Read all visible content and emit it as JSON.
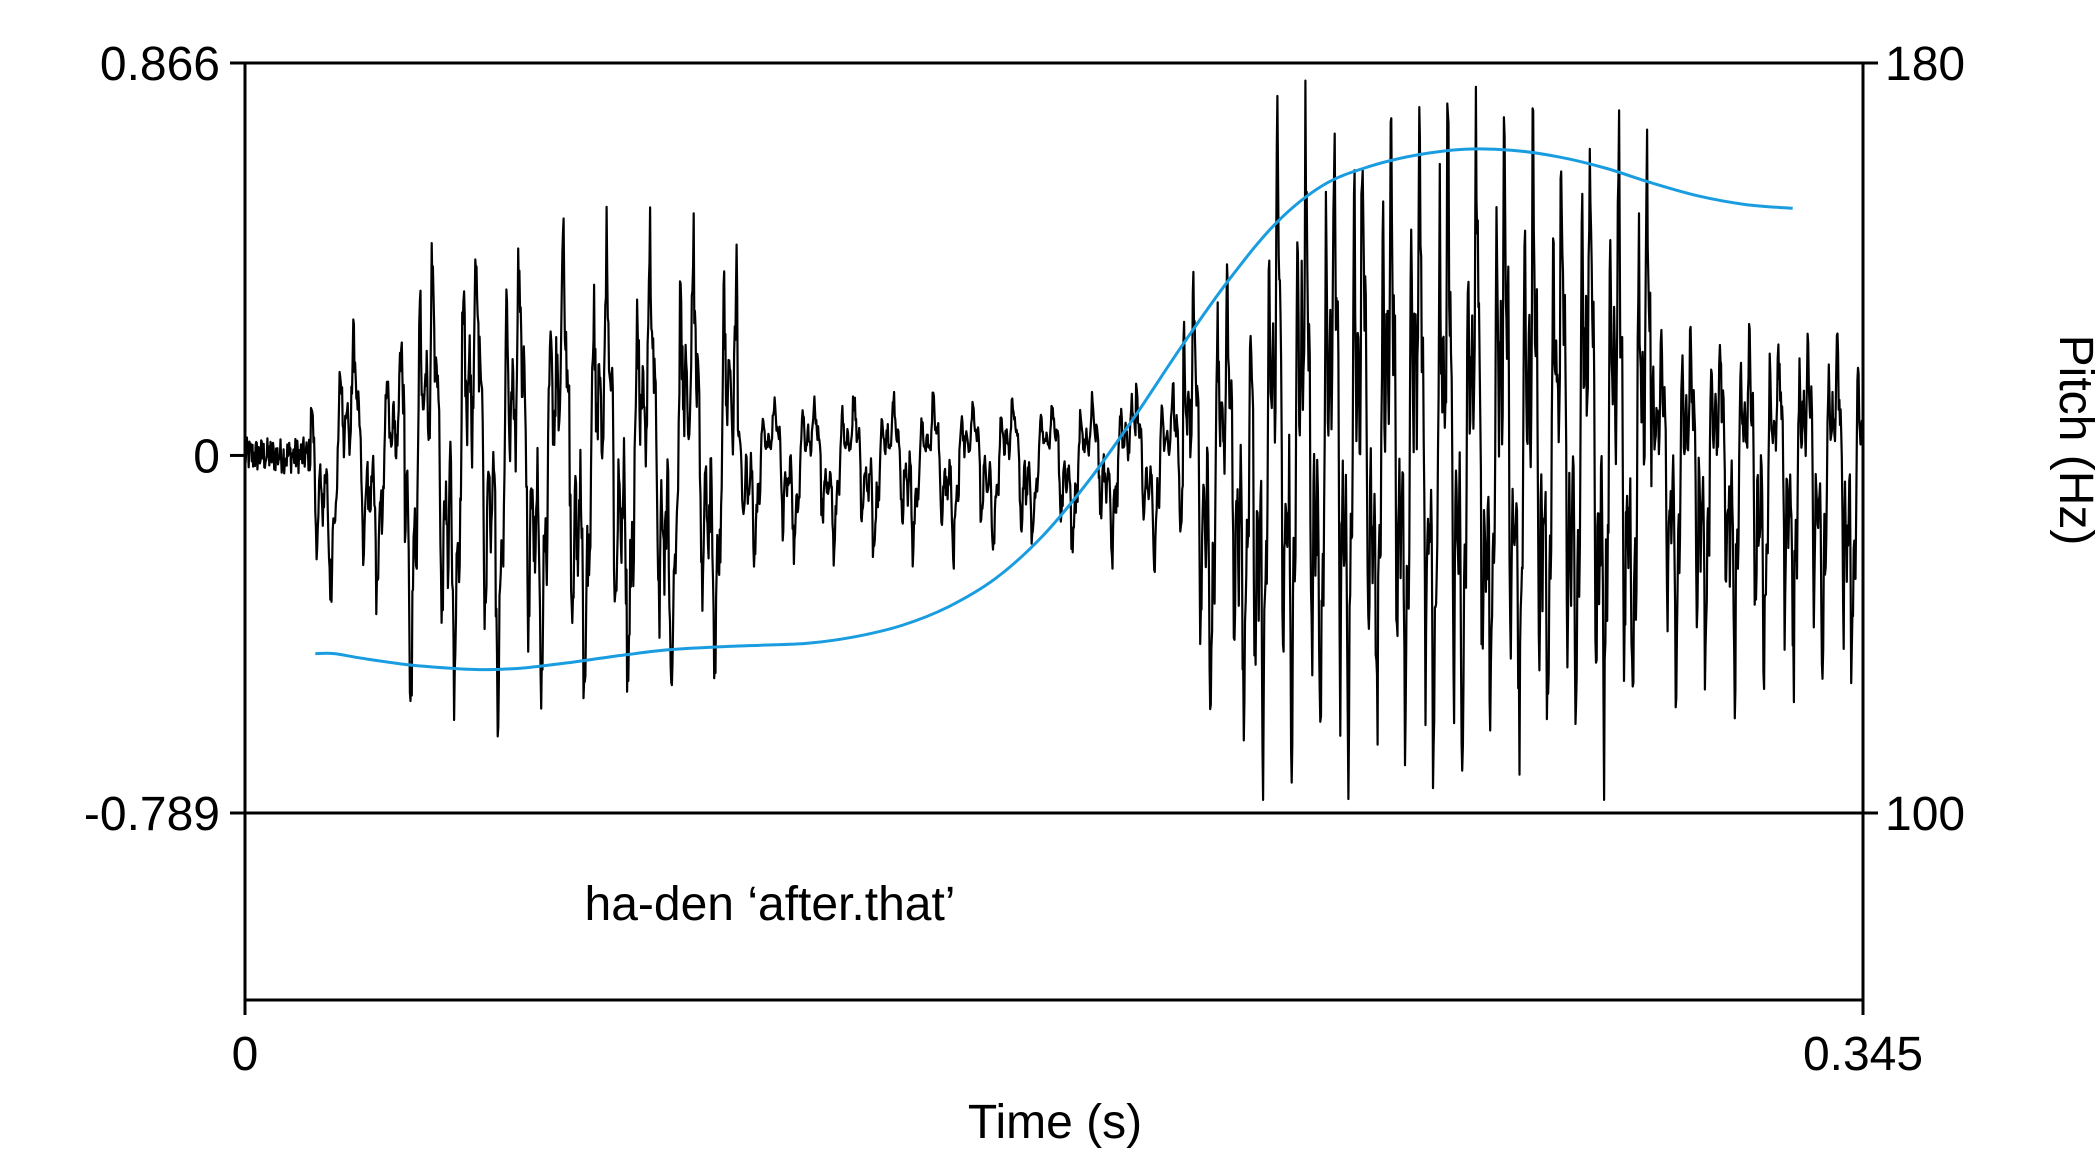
{
  "chart_data": {
    "type": "line",
    "title": "",
    "xlabel": "Time (s)",
    "ylabel_left": "",
    "ylabel_right": "Pitch (Hz)",
    "annotation": "ha-den ‘after.that’",
    "xlim": [
      0,
      0.345
    ],
    "ylim_left": [
      -0.789,
      0.866
    ],
    "ylim_right": [
      100,
      180
    ],
    "x_ticks": [
      {
        "value": 0,
        "label": "0"
      },
      {
        "value": 0.345,
        "label": "0.345"
      }
    ],
    "y_ticks_left": [
      {
        "value": 0.866,
        "label": "0.866"
      },
      {
        "value": 0,
        "label": "0"
      },
      {
        "value": -0.789,
        "label": "-0.789"
      }
    ],
    "y_ticks_right": [
      {
        "value": 180,
        "label": "180"
      },
      {
        "value": 100,
        "label": "100"
      }
    ],
    "series": [
      {
        "kind": "waveform",
        "color": "#000000",
        "segments": [
          {
            "t0": 0.0,
            "t1": 0.014,
            "amp_max": 0.05,
            "amp_min": -0.08,
            "f0": 0
          },
          {
            "t0": 0.014,
            "t1": 0.034,
            "amp_max": 0.3,
            "amp_min": -0.35,
            "f0": 100
          },
          {
            "t0": 0.034,
            "t1": 0.105,
            "amp_max": 0.55,
            "amp_min": -0.62,
            "f0": 108
          },
          {
            "t0": 0.11,
            "t1": 0.19,
            "amp_max": 0.14,
            "amp_min": -0.25,
            "f0": 118
          },
          {
            "t0": 0.19,
            "t1": 0.2,
            "amp_max": 0.18,
            "amp_min": -0.28,
            "f0": 128
          },
          {
            "t0": 0.2,
            "t1": 0.215,
            "amp_max": 0.45,
            "amp_min": -0.7,
            "f0": 140
          },
          {
            "t0": 0.215,
            "t1": 0.3,
            "amp_max": 0.85,
            "amp_min": -0.76,
            "f0": 165
          },
          {
            "t0": 0.3,
            "t1": 0.345,
            "amp_max": 0.3,
            "amp_min": -0.58,
            "f0": 160
          }
        ]
      },
      {
        "kind": "pitch",
        "axis": "right",
        "color": "#1a9de0",
        "points": [
          [
            0.015,
            117.0
          ],
          [
            0.019,
            117.0
          ],
          [
            0.025,
            116.5
          ],
          [
            0.035,
            115.8
          ],
          [
            0.045,
            115.4
          ],
          [
            0.052,
            115.3
          ],
          [
            0.06,
            115.5
          ],
          [
            0.07,
            116.1
          ],
          [
            0.08,
            116.8
          ],
          [
            0.09,
            117.4
          ],
          [
            0.1,
            117.7
          ],
          [
            0.11,
            117.9
          ],
          [
            0.12,
            118.1
          ],
          [
            0.13,
            118.8
          ],
          [
            0.14,
            120.0
          ],
          [
            0.15,
            122.0
          ],
          [
            0.16,
            125.0
          ],
          [
            0.17,
            129.5
          ],
          [
            0.18,
            135.5
          ],
          [
            0.19,
            142.5
          ],
          [
            0.2,
            150.0
          ],
          [
            0.21,
            157.0
          ],
          [
            0.22,
            163.0
          ],
          [
            0.23,
            167.0
          ],
          [
            0.24,
            169.0
          ],
          [
            0.25,
            170.2
          ],
          [
            0.26,
            170.8
          ],
          [
            0.27,
            170.7
          ],
          [
            0.28,
            170.0
          ],
          [
            0.29,
            168.8
          ],
          [
            0.3,
            167.2
          ],
          [
            0.31,
            165.8
          ],
          [
            0.32,
            164.9
          ],
          [
            0.33,
            164.5
          ]
        ]
      }
    ]
  }
}
